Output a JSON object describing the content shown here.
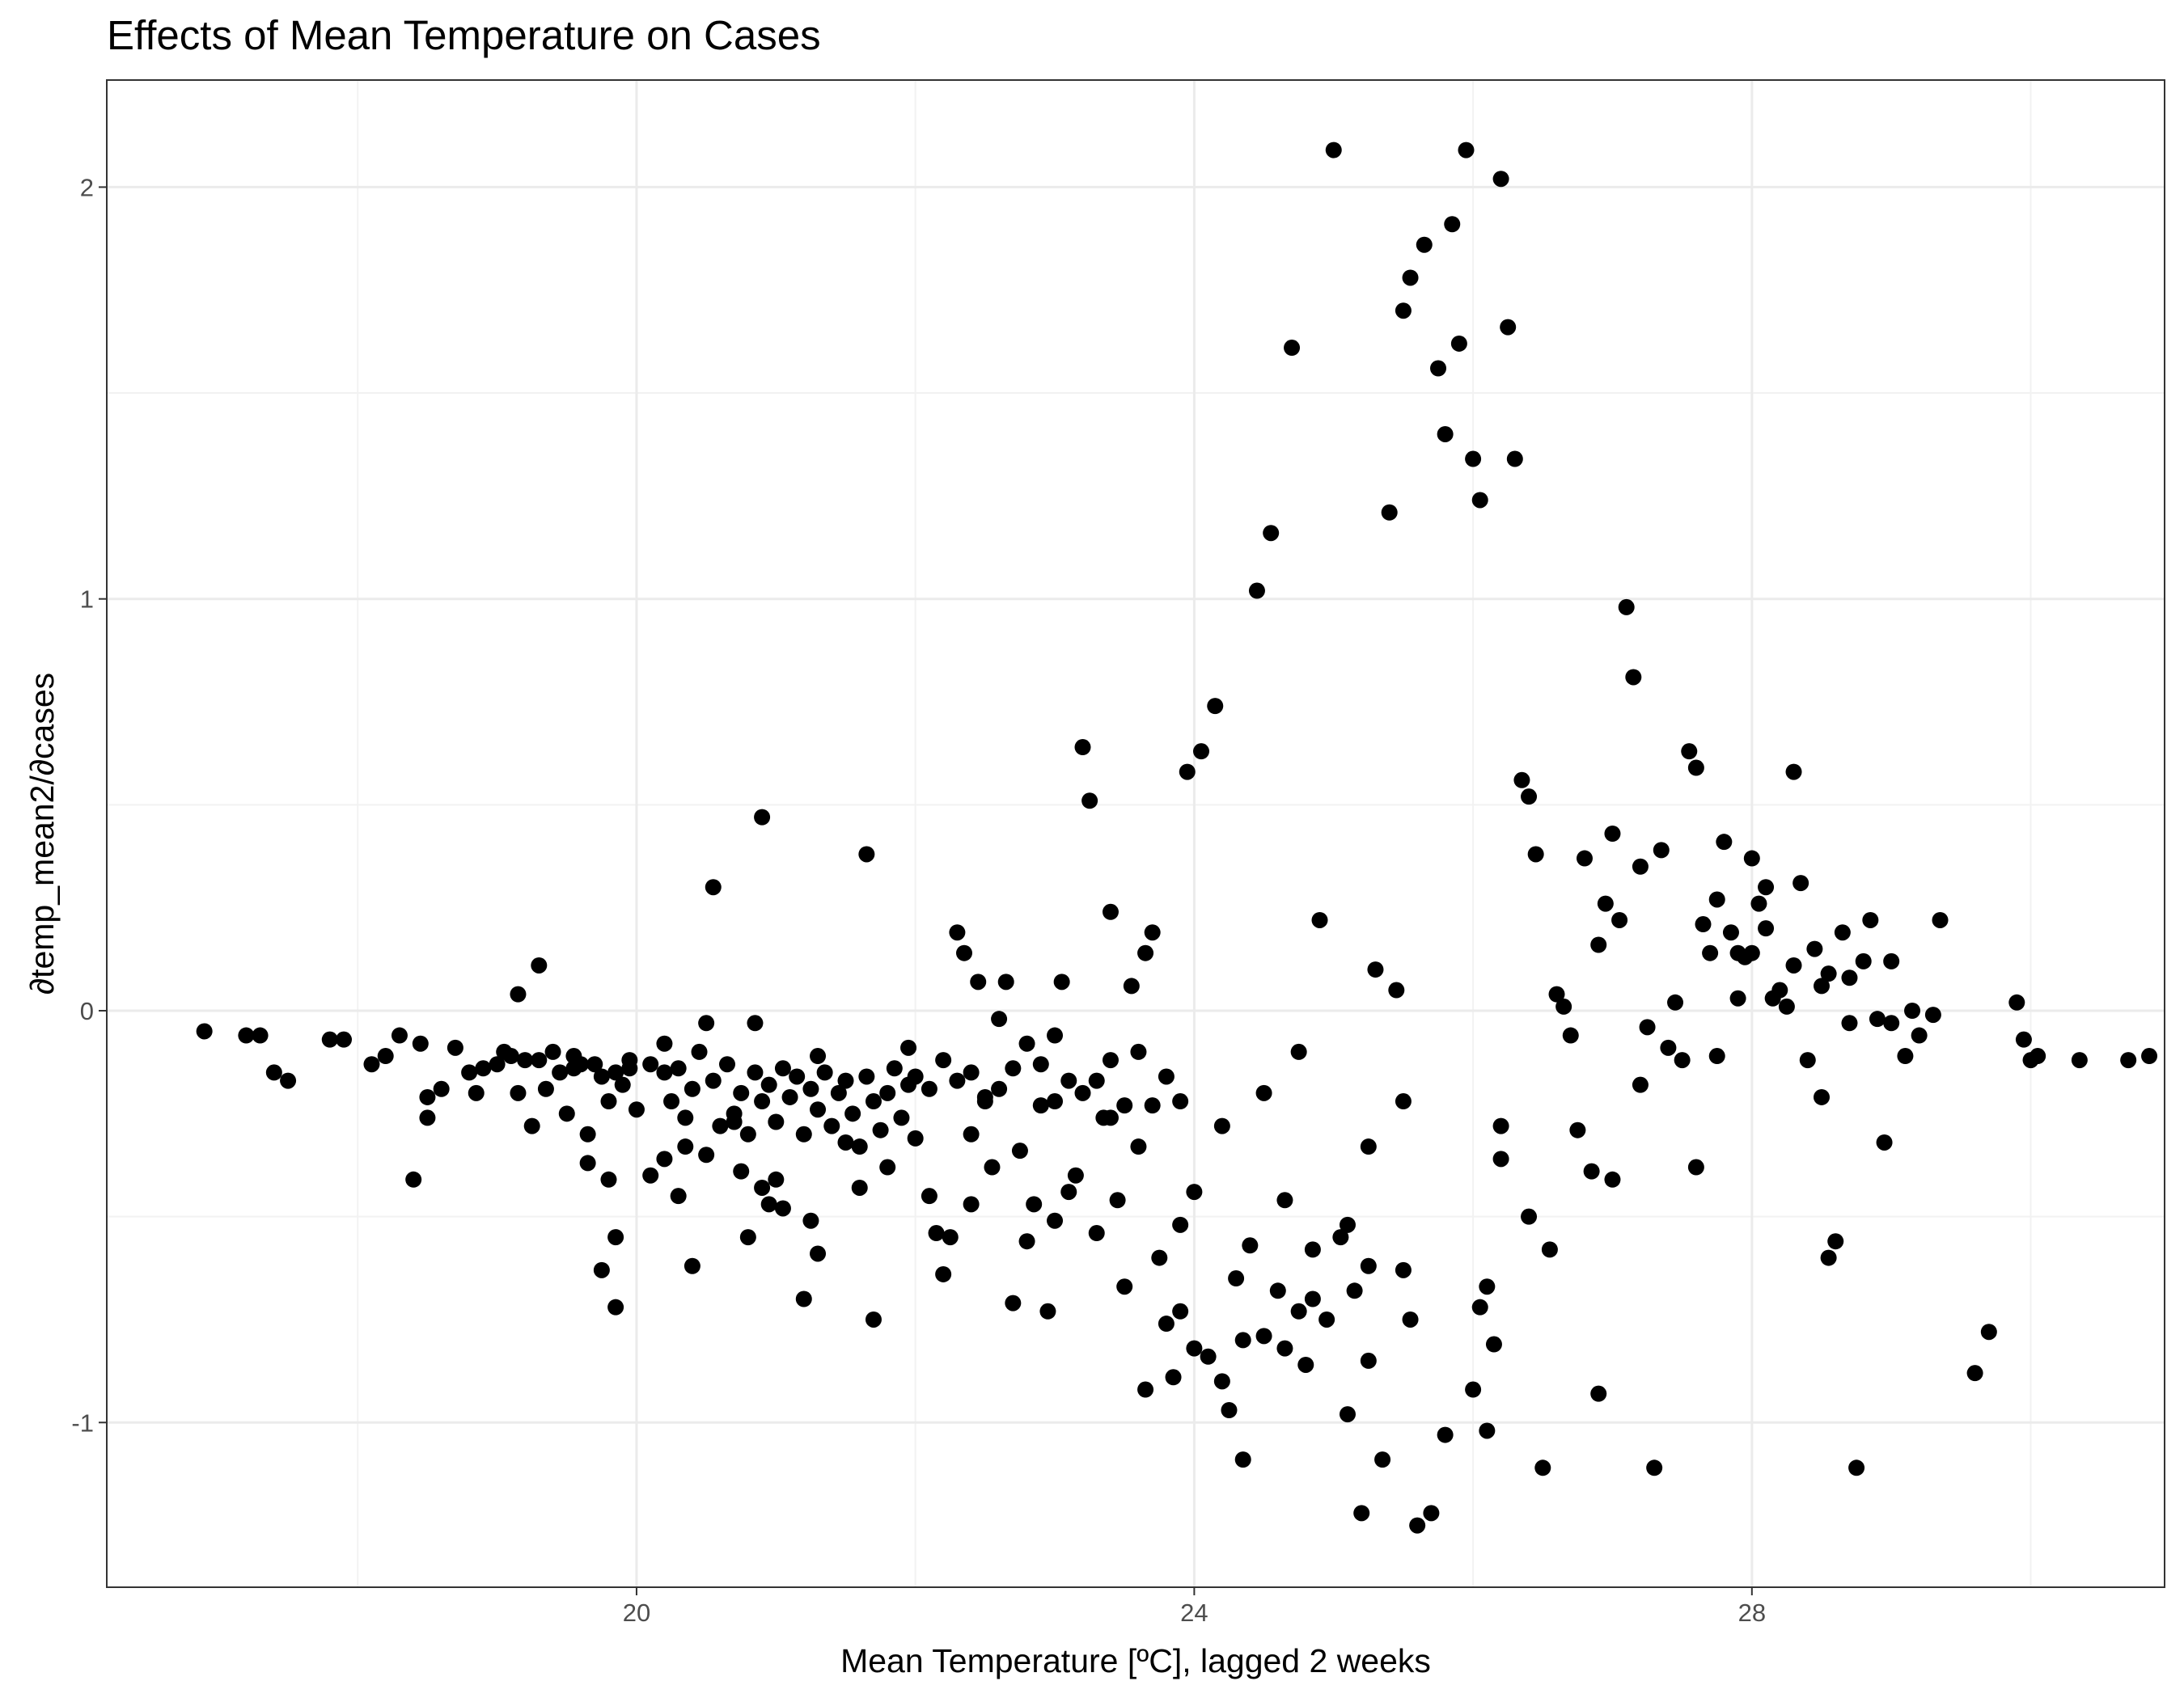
{
  "chart_data": {
    "type": "scatter",
    "title": "Effects of Mean Temperature on Cases",
    "xlabel": "Mean Temperature [ºC], lagged 2 weeks",
    "ylabel": "∂temp_mean2/∂cases",
    "xlim": [
      16.2,
      30.96
    ],
    "ylim": [
      -1.4,
      2.26
    ],
    "xticks": [
      20,
      24,
      28
    ],
    "xtick_labels": [
      "20",
      "24",
      "28"
    ],
    "yticks": [
      -1,
      0,
      1,
      2
    ],
    "ytick_labels": [
      "-1",
      "0",
      "1",
      "2"
    ],
    "grid": true,
    "point_color": "#000000",
    "points": [
      [
        16.9,
        -0.05
      ],
      [
        17.2,
        -0.06
      ],
      [
        17.3,
        -0.06
      ],
      [
        17.4,
        -0.15
      ],
      [
        17.5,
        -0.17
      ],
      [
        17.8,
        -0.07
      ],
      [
        17.9,
        -0.07
      ],
      [
        18.1,
        -0.13
      ],
      [
        18.2,
        -0.11
      ],
      [
        18.3,
        -0.06
      ],
      [
        18.4,
        -0.41
      ],
      [
        18.45,
        -0.08
      ],
      [
        18.5,
        -0.26
      ],
      [
        18.6,
        -0.19
      ],
      [
        18.7,
        -0.09
      ],
      [
        18.8,
        -0.15
      ],
      [
        18.85,
        -0.2
      ],
      [
        18.9,
        -0.14
      ],
      [
        19.0,
        -0.13
      ],
      [
        19.05,
        -0.1
      ],
      [
        19.1,
        -0.11
      ],
      [
        19.15,
        -0.2
      ],
      [
        19.2,
        -0.12
      ],
      [
        19.25,
        -0.28
      ],
      [
        19.3,
        -0.12
      ],
      [
        19.35,
        -0.19
      ],
      [
        19.4,
        -0.1
      ],
      [
        19.45,
        -0.15
      ],
      [
        19.5,
        -0.25
      ],
      [
        19.55,
        -0.14
      ],
      [
        19.6,
        -0.13
      ],
      [
        19.65,
        -0.3
      ],
      [
        19.7,
        -0.13
      ],
      [
        19.75,
        -0.16
      ],
      [
        19.8,
        -0.22
      ],
      [
        19.85,
        -0.15
      ],
      [
        19.9,
        -0.18
      ],
      [
        19.95,
        -0.14
      ],
      [
        20.0,
        -0.24
      ],
      [
        19.95,
        -0.12
      ],
      [
        20.1,
        -0.13
      ],
      [
        20.2,
        -0.15
      ],
      [
        20.25,
        -0.22
      ],
      [
        20.3,
        -0.14
      ],
      [
        20.35,
        -0.26
      ],
      [
        20.4,
        -0.19
      ],
      [
        20.45,
        -0.1
      ],
      [
        20.5,
        -0.35
      ],
      [
        20.55,
        -0.17
      ],
      [
        20.6,
        -0.28
      ],
      [
        20.65,
        -0.13
      ],
      [
        20.7,
        -0.25
      ],
      [
        20.75,
        -0.2
      ],
      [
        20.8,
        -0.3
      ],
      [
        20.85,
        -0.15
      ],
      [
        20.9,
        -0.22
      ],
      [
        20.95,
        -0.18
      ],
      [
        21.0,
        -0.27
      ],
      [
        21.05,
        -0.14
      ],
      [
        21.1,
        -0.21
      ],
      [
        21.15,
        -0.16
      ],
      [
        21.2,
        -0.3
      ],
      [
        21.25,
        -0.19
      ],
      [
        21.3,
        -0.24
      ],
      [
        21.35,
        -0.15
      ],
      [
        21.4,
        -0.28
      ],
      [
        21.45,
        -0.2
      ],
      [
        21.5,
        -0.17
      ],
      [
        21.55,
        -0.25
      ],
      [
        21.6,
        -0.33
      ],
      [
        21.65,
        -0.16
      ],
      [
        21.7,
        -0.22
      ],
      [
        21.75,
        -0.29
      ],
      [
        21.8,
        -0.2
      ],
      [
        21.85,
        -0.14
      ],
      [
        21.9,
        -0.26
      ],
      [
        21.95,
        -0.18
      ],
      [
        22.0,
        -0.31
      ],
      [
        22.1,
        -0.19
      ],
      [
        22.2,
        -0.12
      ],
      [
        22.3,
        -0.17
      ],
      [
        22.4,
        -0.15
      ],
      [
        22.5,
        -0.22
      ],
      [
        22.6,
        -0.19
      ],
      [
        22.7,
        -0.14
      ],
      [
        22.8,
        -0.08
      ],
      [
        22.9,
        -0.13
      ],
      [
        23.0,
        -0.22
      ],
      [
        23.1,
        -0.17
      ],
      [
        23.2,
        -0.2
      ],
      [
        23.3,
        -0.17
      ],
      [
        23.4,
        -0.26
      ],
      [
        23.5,
        -0.23
      ],
      [
        23.6,
        -0.1
      ],
      [
        23.7,
        -0.23
      ],
      [
        23.8,
        -0.16
      ],
      [
        23.9,
        -0.22
      ],
      [
        19.3,
        0.11
      ],
      [
        19.15,
        0.04
      ],
      [
        19.8,
        -0.41
      ],
      [
        19.75,
        -0.63
      ],
      [
        19.85,
        -0.55
      ],
      [
        19.85,
        -0.72
      ],
      [
        19.65,
        -0.37
      ],
      [
        20.1,
        -0.4
      ],
      [
        20.2,
        -0.36
      ],
      [
        20.3,
        -0.45
      ],
      [
        20.35,
        -0.33
      ],
      [
        20.4,
        -0.62
      ],
      [
        20.5,
        -0.03
      ],
      [
        20.55,
        0.3
      ],
      [
        20.7,
        -0.27
      ],
      [
        20.75,
        -0.39
      ],
      [
        20.8,
        -0.55
      ],
      [
        20.85,
        -0.03
      ],
      [
        20.9,
        -0.43
      ],
      [
        20.95,
        -0.47
      ],
      [
        21.0,
        -0.41
      ],
      [
        21.05,
        -0.48
      ],
      [
        20.9,
        0.47
      ],
      [
        21.2,
        -0.7
      ],
      [
        21.25,
        -0.51
      ],
      [
        21.3,
        -0.59
      ],
      [
        21.5,
        -0.32
      ],
      [
        21.6,
        -0.43
      ],
      [
        21.65,
        0.38
      ],
      [
        21.7,
        -0.75
      ],
      [
        21.8,
        -0.38
      ],
      [
        22.1,
        -0.45
      ],
      [
        22.15,
        -0.54
      ],
      [
        22.2,
        -0.64
      ],
      [
        22.25,
        -0.55
      ],
      [
        22.3,
        0.19
      ],
      [
        22.35,
        0.14
      ],
      [
        22.4,
        -0.47
      ],
      [
        22.45,
        0.07
      ],
      [
        22.5,
        -0.21
      ],
      [
        22.55,
        -0.38
      ],
      [
        22.6,
        -0.02
      ],
      [
        22.65,
        0.07
      ],
      [
        22.7,
        -0.71
      ],
      [
        22.75,
        -0.34
      ],
      [
        22.8,
        -0.56
      ],
      [
        22.85,
        -0.47
      ],
      [
        22.9,
        -0.23
      ],
      [
        22.95,
        -0.73
      ],
      [
        23.0,
        -0.51
      ],
      [
        23.05,
        0.07
      ],
      [
        23.1,
        -0.44
      ],
      [
        23.15,
        -0.4
      ],
      [
        23.2,
        0.64
      ],
      [
        23.25,
        0.51
      ],
      [
        23.3,
        -0.54
      ],
      [
        23.35,
        -0.26
      ],
      [
        23.4,
        0.24
      ],
      [
        23.45,
        -0.46
      ],
      [
        23.5,
        -0.67
      ],
      [
        23.55,
        0.06
      ],
      [
        23.6,
        -0.33
      ],
      [
        23.65,
        0.14
      ],
      [
        23.7,
        0.19
      ],
      [
        23.75,
        -0.6
      ],
      [
        23.8,
        -0.76
      ],
      [
        23.85,
        -0.89
      ],
      [
        23.9,
        -0.73
      ],
      [
        23.95,
        0.58
      ],
      [
        24.0,
        -0.44
      ],
      [
        24.05,
        0.63
      ],
      [
        24.1,
        -0.84
      ],
      [
        24.15,
        0.74
      ],
      [
        24.2,
        -0.9
      ],
      [
        24.25,
        -0.97
      ],
      [
        24.3,
        -0.65
      ],
      [
        24.35,
        -1.09
      ],
      [
        24.4,
        -0.57
      ],
      [
        24.45,
        1.02
      ],
      [
        24.5,
        -0.79
      ],
      [
        24.55,
        1.16
      ],
      [
        24.6,
        -0.68
      ],
      [
        24.65,
        -0.46
      ],
      [
        24.7,
        1.61
      ],
      [
        24.75,
        -0.73
      ],
      [
        24.8,
        -0.86
      ],
      [
        24.85,
        -0.7
      ],
      [
        24.9,
        0.22
      ],
      [
        24.95,
        -0.75
      ],
      [
        25.0,
        2.09
      ],
      [
        25.05,
        -0.55
      ],
      [
        25.1,
        -0.98
      ],
      [
        25.15,
        -0.68
      ],
      [
        25.2,
        -1.22
      ],
      [
        25.25,
        -0.85
      ],
      [
        25.3,
        0.1
      ],
      [
        25.35,
        -1.09
      ],
      [
        25.4,
        1.21
      ],
      [
        25.45,
        0.05
      ],
      [
        25.5,
        1.7
      ],
      [
        25.55,
        1.78
      ],
      [
        25.6,
        -1.25
      ],
      [
        25.65,
        1.86
      ],
      [
        25.7,
        -1.22
      ],
      [
        25.75,
        1.56
      ],
      [
        25.8,
        1.4
      ],
      [
        25.85,
        1.91
      ],
      [
        25.9,
        1.62
      ],
      [
        25.95,
        2.09
      ],
      [
        26.0,
        1.34
      ],
      [
        26.05,
        1.24
      ],
      [
        26.1,
        -1.02
      ],
      [
        26.15,
        -0.81
      ],
      [
        26.2,
        2.02
      ],
      [
        26.25,
        1.66
      ],
      [
        26.3,
        1.34
      ],
      [
        26.35,
        0.56
      ],
      [
        26.4,
        0.52
      ],
      [
        26.45,
        0.38
      ],
      [
        26.5,
        -1.11
      ],
      [
        26.55,
        -0.58
      ],
      [
        26.6,
        0.04
      ],
      [
        26.65,
        0.01
      ],
      [
        26.7,
        -0.06
      ],
      [
        26.75,
        -0.29
      ],
      [
        26.8,
        0.37
      ],
      [
        26.85,
        -0.39
      ],
      [
        26.9,
        0.16
      ],
      [
        26.95,
        0.26
      ],
      [
        27.0,
        0.43
      ],
      [
        27.05,
        0.22
      ],
      [
        27.1,
        0.98
      ],
      [
        27.15,
        0.81
      ],
      [
        27.2,
        0.35
      ],
      [
        27.25,
        -0.04
      ],
      [
        27.3,
        -1.11
      ],
      [
        27.35,
        0.39
      ],
      [
        27.4,
        -0.09
      ],
      [
        27.45,
        0.02
      ],
      [
        27.5,
        -0.12
      ],
      [
        27.55,
        0.63
      ],
      [
        27.6,
        0.59
      ],
      [
        27.65,
        0.21
      ],
      [
        27.7,
        0.14
      ],
      [
        27.75,
        0.27
      ],
      [
        27.8,
        0.41
      ],
      [
        27.85,
        0.19
      ],
      [
        27.9,
        0.14
      ],
      [
        27.95,
        0.13
      ],
      [
        28.0,
        0.37
      ],
      [
        28.05,
        0.26
      ],
      [
        28.1,
        0.3
      ],
      [
        28.15,
        0.03
      ],
      [
        28.2,
        0.05
      ],
      [
        28.25,
        0.01
      ],
      [
        28.3,
        0.58
      ],
      [
        28.35,
        0.31
      ],
      [
        28.4,
        -0.12
      ],
      [
        28.45,
        0.15
      ],
      [
        28.5,
        -0.21
      ],
      [
        28.55,
        0.09
      ],
      [
        28.6,
        -0.56
      ],
      [
        28.65,
        0.19
      ],
      [
        28.7,
        -0.03
      ],
      [
        28.75,
        -1.11
      ],
      [
        28.8,
        0.12
      ],
      [
        28.85,
        0.22
      ],
      [
        28.9,
        -0.02
      ],
      [
        29.0,
        -0.03
      ],
      [
        29.1,
        -0.11
      ],
      [
        29.15,
        0.0
      ],
      [
        29.2,
        -0.06
      ],
      [
        29.6,
        -0.88
      ],
      [
        29.7,
        -0.78
      ],
      [
        29.9,
        0.02
      ],
      [
        29.95,
        -0.07
      ],
      [
        30.0,
        -0.12
      ],
      [
        30.05,
        -0.11
      ],
      [
        30.35,
        -0.12
      ],
      [
        30.7,
        -0.12
      ],
      [
        30.85,
        -0.11
      ],
      [
        29.3,
        -0.01
      ],
      [
        28.95,
        -0.32
      ],
      [
        26.2,
        -0.36
      ],
      [
        26.9,
        -0.93
      ],
      [
        27.0,
        -0.41
      ],
      [
        27.2,
        -0.18
      ],
      [
        24.35,
        -0.8
      ],
      [
        24.65,
        -0.82
      ],
      [
        25.5,
        -0.63
      ],
      [
        25.8,
        -1.03
      ],
      [
        26.0,
        -0.92
      ],
      [
        25.1,
        -0.52
      ],
      [
        24.0,
        -0.82
      ],
      [
        23.65,
        -0.92
      ],
      [
        23.9,
        -0.52
      ],
      [
        24.85,
        -0.58
      ],
      [
        25.55,
        -0.75
      ],
      [
        26.1,
        -0.67
      ],
      [
        26.4,
        -0.5
      ],
      [
        27.6,
        -0.38
      ],
      [
        28.55,
        -0.6
      ],
      [
        26.05,
        -0.72
      ],
      [
        25.25,
        -0.62
      ],
      [
        24.2,
        -0.28
      ],
      [
        22.4,
        -0.3
      ],
      [
        21.95,
        -0.09
      ],
      [
        19.55,
        -0.11
      ],
      [
        18.5,
        -0.21
      ],
      [
        20.2,
        -0.08
      ],
      [
        21.3,
        -0.11
      ],
      [
        22.0,
        -0.16
      ],
      [
        23.0,
        -0.06
      ],
      [
        23.4,
        -0.12
      ],
      [
        24.5,
        -0.2
      ],
      [
        24.75,
        -0.1
      ],
      [
        25.25,
        -0.33
      ],
      [
        25.5,
        -0.22
      ],
      [
        26.2,
        -0.28
      ],
      [
        27.75,
        -0.11
      ],
      [
        27.9,
        0.03
      ],
      [
        28.0,
        0.14
      ],
      [
        28.1,
        0.2
      ],
      [
        28.3,
        0.11
      ],
      [
        28.5,
        0.06
      ],
      [
        28.7,
        0.08
      ],
      [
        29.0,
        0.12
      ],
      [
        29.35,
        0.22
      ]
    ]
  }
}
